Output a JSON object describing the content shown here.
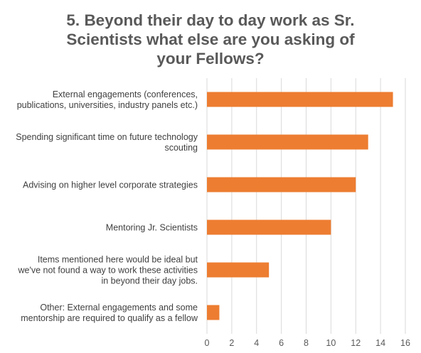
{
  "chart_data": {
    "type": "bar",
    "orientation": "horizontal",
    "title": "5. Beyond their day to day work as Sr. Scientists what else are you asking of your Fellows?",
    "title_lines": [
      "5. Beyond their day to day work as Sr.",
      "Scientists what else are you asking of",
      "your Fellows?"
    ],
    "categories": [
      [
        "External engagements (conferences,",
        "publications, universities, industry panels etc.)"
      ],
      [
        "Spending significant time on future technology",
        "scouting"
      ],
      [
        "Advising on higher level corporate strategies"
      ],
      [
        "Mentoring Jr. Scientists"
      ],
      [
        "Items mentioned here would be ideal but",
        "we've not found a way to work these activities",
        "in beyond their day jobs."
      ],
      [
        "Other: External engagements and some",
        "mentorship are required to qualify as a fellow"
      ]
    ],
    "values": [
      15,
      13,
      12,
      10,
      5,
      1
    ],
    "xlim": [
      0,
      16
    ],
    "xticks": [
      0,
      2,
      4,
      6,
      8,
      10,
      12,
      14,
      16
    ],
    "xlabel": "",
    "ylabel": "",
    "grid": true,
    "legend": "none",
    "bar_color": "#ED7D31"
  }
}
